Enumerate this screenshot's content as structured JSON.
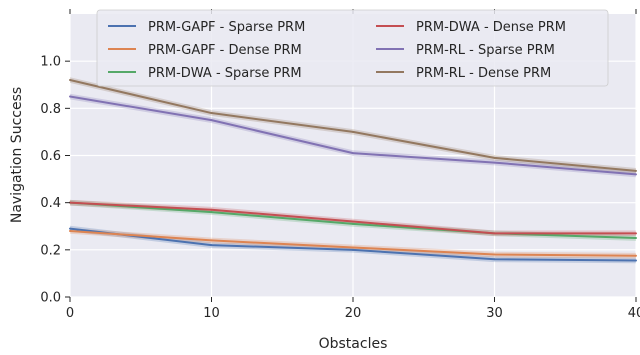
{
  "chart_data": {
    "type": "line",
    "xlabel": "Obstacles",
    "ylabel": "Navigation Success",
    "xlim": [
      0,
      40
    ],
    "ylim": [
      0.0,
      1.2
    ],
    "x_ticks": [
      "0",
      "10",
      "20",
      "30",
      "40"
    ],
    "y_ticks": [
      "0.0",
      "0.2",
      "0.4",
      "0.6",
      "0.8",
      "1.0"
    ],
    "grid": true,
    "legend_position": "top",
    "x": [
      0,
      10,
      20,
      30,
      40
    ],
    "series": [
      {
        "name": "PRM-GAPF - Sparse PRM",
        "color": "#4c72b0",
        "values": [
          0.29,
          0.22,
          0.2,
          0.16,
          0.155
        ]
      },
      {
        "name": "PRM-GAPF - Dense PRM",
        "color": "#dd8452",
        "values": [
          0.28,
          0.24,
          0.21,
          0.18,
          0.175
        ]
      },
      {
        "name": "PRM-DWA - Sparse PRM",
        "color": "#55a868",
        "values": [
          0.4,
          0.36,
          0.31,
          0.27,
          0.25
        ]
      },
      {
        "name": "PRM-DWA - Dense PRM",
        "color": "#c44e52",
        "values": [
          0.4,
          0.37,
          0.32,
          0.27,
          0.27
        ]
      },
      {
        "name": "PRM-RL - Sparse PRM",
        "color": "#8172b3",
        "values": [
          0.85,
          0.75,
          0.61,
          0.57,
          0.52
        ]
      },
      {
        "name": "PRM-RL - Dense PRM",
        "color": "#937860",
        "values": [
          0.92,
          0.78,
          0.7,
          0.59,
          0.535
        ]
      }
    ]
  }
}
